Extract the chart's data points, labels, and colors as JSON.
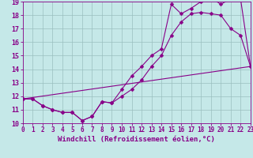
{
  "xlabel": "Windchill (Refroidissement éolien,°C)",
  "xlim": [
    0,
    23
  ],
  "ylim": [
    10,
    19
  ],
  "xticks": [
    0,
    1,
    2,
    3,
    4,
    5,
    6,
    7,
    8,
    9,
    10,
    11,
    12,
    13,
    14,
    15,
    16,
    17,
    18,
    19,
    20,
    21,
    22,
    23
  ],
  "yticks": [
    10,
    11,
    12,
    13,
    14,
    15,
    16,
    17,
    18,
    19
  ],
  "bg_color": "#c5e8e8",
  "grid_color": "#9abfbf",
  "line_color": "#880088",
  "line1_x": [
    0,
    1,
    2,
    3,
    4,
    5,
    6,
    7,
    8,
    9,
    10,
    11,
    12,
    13,
    14,
    15,
    16,
    17,
    18,
    19,
    20,
    21,
    22,
    23
  ],
  "line1_y": [
    11.8,
    11.8,
    11.3,
    11.0,
    10.8,
    10.8,
    10.2,
    10.5,
    11.6,
    11.5,
    12.0,
    12.5,
    13.2,
    14.2,
    15.0,
    16.5,
    17.5,
    18.1,
    18.2,
    18.1,
    18.0,
    17.0,
    16.5,
    14.2
  ],
  "line2_x": [
    0,
    1,
    2,
    3,
    4,
    5,
    6,
    7,
    8,
    9,
    10,
    11,
    12,
    13,
    14,
    15,
    16,
    17,
    18,
    19,
    20,
    21,
    22,
    23
  ],
  "line2_y": [
    11.8,
    11.8,
    11.3,
    11.0,
    10.8,
    10.8,
    10.2,
    10.5,
    11.6,
    11.5,
    12.5,
    13.5,
    14.2,
    15.0,
    15.5,
    18.8,
    18.1,
    18.5,
    19.0,
    19.3,
    18.8,
    19.2,
    19.2,
    14.2
  ],
  "line3_x": [
    0,
    23
  ],
  "line3_y": [
    11.8,
    14.2
  ],
  "fontsize_xlabel": 6.5,
  "fontsize_tick": 5.5,
  "markersize": 2.5
}
